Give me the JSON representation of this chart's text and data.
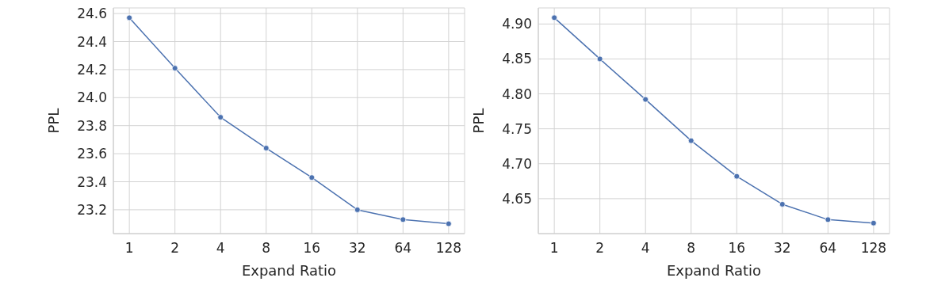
{
  "chart_data": [
    {
      "type": "line",
      "categories": [
        "1",
        "2",
        "4",
        "8",
        "16",
        "32",
        "64",
        "128"
      ],
      "xlabel": "Expand Ratio",
      "ylabel": "PPL",
      "series": [
        {
          "color": "#4c72b0",
          "values": [
            24.57,
            24.21,
            23.86,
            23.64,
            23.43,
            23.2,
            23.13,
            23.1
          ]
        }
      ],
      "ylim": [
        23.03,
        24.64
      ],
      "yticks": [
        23.2,
        23.4,
        23.6,
        23.8,
        {
          "value": 24,
          "label": "24.0"
        },
        24.2,
        24.4,
        24.6
      ],
      "grid": true,
      "marker": "circle",
      "line_style": "solid",
      "legend": false
    },
    {
      "type": "line",
      "categories": [
        "1",
        "2",
        "4",
        "8",
        "16",
        "32",
        "64",
        "128"
      ],
      "xlabel": "Expand Ratio",
      "ylabel": "PPL",
      "series": [
        {
          "color": "#4c72b0",
          "values": [
            4.909,
            4.85,
            4.792,
            4.733,
            4.682,
            4.642,
            4.62,
            4.615
          ]
        }
      ],
      "ylim": [
        4.6,
        4.923
      ],
      "yticks": [
        4.65,
        {
          "value": 4.7,
          "label": "4.70"
        },
        4.75,
        {
          "value": 4.8,
          "label": "4.80"
        },
        4.85,
        {
          "value": 4.9,
          "label": "4.90"
        }
      ],
      "grid": true,
      "marker": "circle",
      "line_style": "solid",
      "legend": false
    }
  ]
}
